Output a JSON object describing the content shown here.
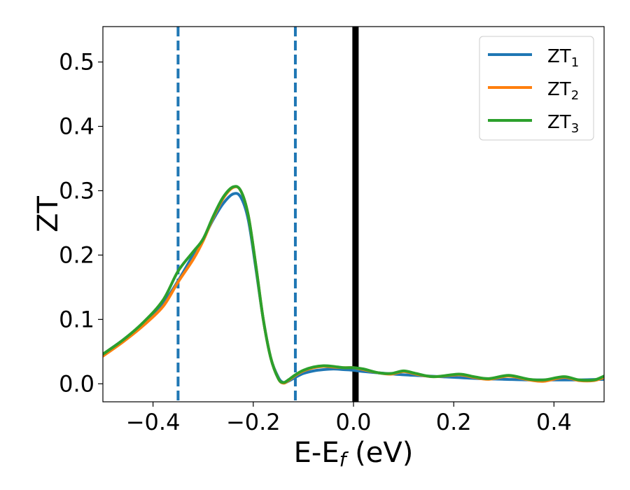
{
  "chart_data": {
    "type": "line",
    "title": "",
    "xlabel": "E-E",
    "xlabel_sub": "f",
    "xlabel_unit": " (eV)",
    "ylabel": "ZT",
    "xlim": [
      -0.5,
      0.5
    ],
    "ylim": [
      -0.028,
      0.555
    ],
    "xticks": [
      -0.4,
      -0.2,
      0.0,
      0.2,
      0.4
    ],
    "xtick_labels": [
      "−0.4",
      "−0.2",
      "0.0",
      "0.2",
      "0.4"
    ],
    "yticks": [
      0.0,
      0.1,
      0.2,
      0.3,
      0.4,
      0.5
    ],
    "ytick_labels": [
      "0.0",
      "0.1",
      "0.2",
      "0.3",
      "0.4",
      "0.5"
    ],
    "grid": false,
    "legend_position": "top-right",
    "vlines": [
      {
        "x": -0.35,
        "style": "dashed",
        "color": "#1f77b4"
      },
      {
        "x": -0.116,
        "style": "dashed",
        "color": "#1f77b4"
      },
      {
        "x": 0.004,
        "style": "solid",
        "color": "#000000"
      }
    ],
    "series": [
      {
        "name": "ZT",
        "name_sub": "1",
        "color": "#1f77b4",
        "points": [
          [
            -0.5,
            0.046
          ],
          [
            -0.46,
            0.068
          ],
          [
            -0.42,
            0.094
          ],
          [
            -0.38,
            0.125
          ],
          [
            -0.35,
            0.16
          ],
          [
            -0.32,
            0.2
          ],
          [
            -0.3,
            0.225
          ],
          [
            -0.28,
            0.255
          ],
          [
            -0.26,
            0.28
          ],
          [
            -0.24,
            0.295
          ],
          [
            -0.225,
            0.29
          ],
          [
            -0.21,
            0.255
          ],
          [
            -0.195,
            0.18
          ],
          [
            -0.18,
            0.1
          ],
          [
            -0.165,
            0.04
          ],
          [
            -0.15,
            0.01
          ],
          [
            -0.14,
            0.002
          ],
          [
            -0.13,
            0.004
          ],
          [
            -0.116,
            0.01
          ],
          [
            -0.1,
            0.016
          ],
          [
            -0.08,
            0.02
          ],
          [
            -0.06,
            0.022
          ],
          [
            -0.04,
            0.023
          ],
          [
            -0.02,
            0.022
          ],
          [
            0.0,
            0.021
          ],
          [
            0.02,
            0.019
          ],
          [
            0.05,
            0.017
          ],
          [
            0.1,
            0.014
          ],
          [
            0.15,
            0.012
          ],
          [
            0.2,
            0.01
          ],
          [
            0.25,
            0.008
          ],
          [
            0.3,
            0.007
          ],
          [
            0.35,
            0.006
          ],
          [
            0.4,
            0.006
          ],
          [
            0.45,
            0.006
          ],
          [
            0.5,
            0.007
          ]
        ]
      },
      {
        "name": "ZT",
        "name_sub": "2",
        "color": "#ff7f0e",
        "points": [
          [
            -0.5,
            0.043
          ],
          [
            -0.46,
            0.065
          ],
          [
            -0.42,
            0.09
          ],
          [
            -0.38,
            0.12
          ],
          [
            -0.35,
            0.158
          ],
          [
            -0.32,
            0.193
          ],
          [
            -0.3,
            0.222
          ],
          [
            -0.28,
            0.258
          ],
          [
            -0.26,
            0.288
          ],
          [
            -0.24,
            0.305
          ],
          [
            -0.225,
            0.3
          ],
          [
            -0.21,
            0.262
          ],
          [
            -0.195,
            0.185
          ],
          [
            -0.18,
            0.1
          ],
          [
            -0.165,
            0.04
          ],
          [
            -0.15,
            0.008
          ],
          [
            -0.14,
            0.001
          ],
          [
            -0.13,
            0.005
          ],
          [
            -0.116,
            0.013
          ],
          [
            -0.1,
            0.02
          ],
          [
            -0.08,
            0.025
          ],
          [
            -0.06,
            0.027
          ],
          [
            -0.04,
            0.026
          ],
          [
            -0.02,
            0.025
          ],
          [
            0.0,
            0.025
          ],
          [
            0.02,
            0.022
          ],
          [
            0.05,
            0.017
          ],
          [
            0.075,
            0.015
          ],
          [
            0.1,
            0.019
          ],
          [
            0.125,
            0.015
          ],
          [
            0.16,
            0.011
          ],
          [
            0.21,
            0.014
          ],
          [
            0.24,
            0.01
          ],
          [
            0.27,
            0.007
          ],
          [
            0.31,
            0.012
          ],
          [
            0.35,
            0.006
          ],
          [
            0.38,
            0.004
          ],
          [
            0.42,
            0.01
          ],
          [
            0.45,
            0.005
          ],
          [
            0.48,
            0.005
          ],
          [
            0.5,
            0.01
          ]
        ]
      },
      {
        "name": "ZT",
        "name_sub": "3",
        "color": "#2ca02c",
        "points": [
          [
            -0.5,
            0.046
          ],
          [
            -0.46,
            0.068
          ],
          [
            -0.42,
            0.095
          ],
          [
            -0.38,
            0.13
          ],
          [
            -0.35,
            0.175
          ],
          [
            -0.32,
            0.205
          ],
          [
            -0.3,
            0.225
          ],
          [
            -0.28,
            0.26
          ],
          [
            -0.26,
            0.29
          ],
          [
            -0.24,
            0.306
          ],
          [
            -0.225,
            0.3
          ],
          [
            -0.21,
            0.262
          ],
          [
            -0.195,
            0.185
          ],
          [
            -0.18,
            0.1
          ],
          [
            -0.165,
            0.04
          ],
          [
            -0.15,
            0.008
          ],
          [
            -0.14,
            0.002
          ],
          [
            -0.13,
            0.006
          ],
          [
            -0.116,
            0.014
          ],
          [
            -0.1,
            0.021
          ],
          [
            -0.08,
            0.026
          ],
          [
            -0.06,
            0.028
          ],
          [
            -0.04,
            0.027
          ],
          [
            -0.02,
            0.025
          ],
          [
            0.0,
            0.025
          ],
          [
            0.02,
            0.023
          ],
          [
            0.05,
            0.017
          ],
          [
            0.075,
            0.016
          ],
          [
            0.1,
            0.02
          ],
          [
            0.125,
            0.016
          ],
          [
            0.16,
            0.011
          ],
          [
            0.21,
            0.015
          ],
          [
            0.24,
            0.011
          ],
          [
            0.27,
            0.008
          ],
          [
            0.31,
            0.013
          ],
          [
            0.35,
            0.007
          ],
          [
            0.38,
            0.006
          ],
          [
            0.42,
            0.011
          ],
          [
            0.45,
            0.006
          ],
          [
            0.48,
            0.006
          ],
          [
            0.5,
            0.012
          ]
        ]
      }
    ]
  }
}
